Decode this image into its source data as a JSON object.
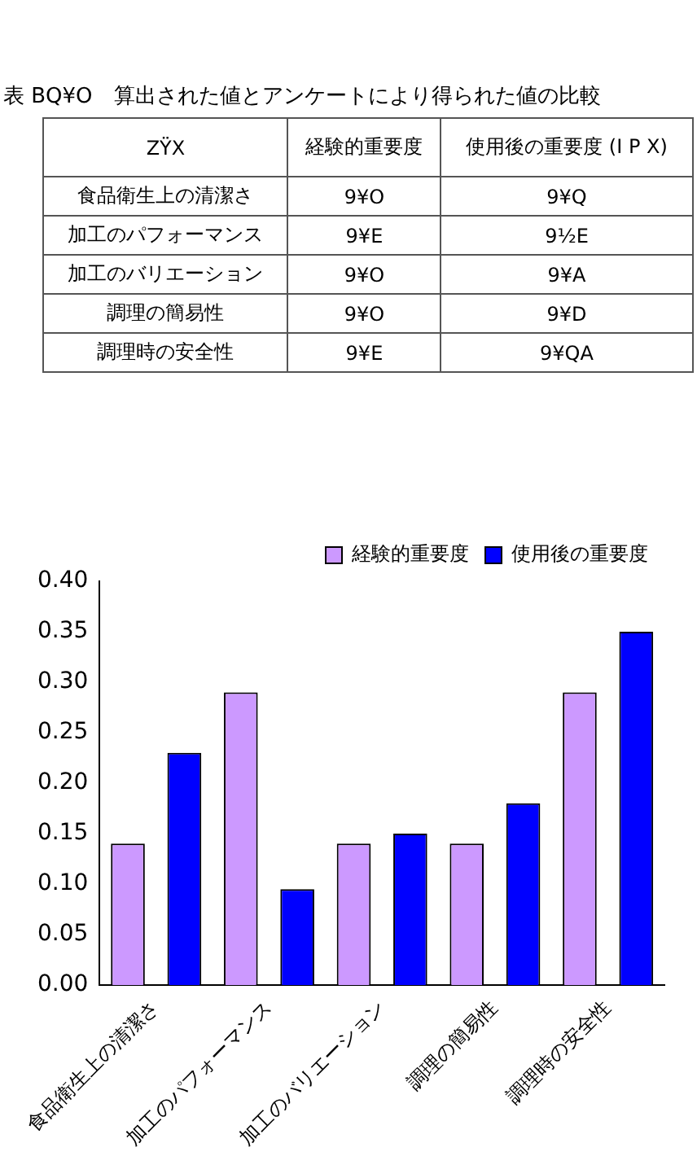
{
  "chart_data": [
    {
      "type": "other",
      "title": "表 BQ¥O　算出された値とアンケートにより得られた値の比較",
      "annotations": [
        "ZŸX",
        "経験的重要度",
        "使用後の重要度 (I P X)",
        "食品衛生上の清潔さ",
        "9¥O",
        "9¥Q",
        "加工のパフォーマンス",
        "9¥E",
        "9½E",
        "加工のバリエーション",
        "9¥O",
        "9¥A",
        "調理の簡易性",
        "9¥O",
        "9¥D",
        "調理時の安全性",
        "9¥E",
        "9¥QA"
      ]
    },
    {
      "type": "bar",
      "categories": [
        "食品衛生上の清潔さ",
        "加工のパフォーマンス",
        "加工のバリエーション",
        "調理の簡易性",
        "調理時の安全性"
      ],
      "series": [
        {
          "name": "経験的重要度",
          "color": "#cc99ff",
          "values": [
            0.14,
            0.29,
            0.14,
            0.14,
            0.29
          ]
        },
        {
          "name": "使用後の重要度",
          "color": "#0000ff",
          "values": [
            0.23,
            0.095,
            0.15,
            0.18,
            0.35
          ]
        }
      ],
      "ylim": [
        0,
        0.4
      ],
      "yticks": [
        {
          "value": 0,
          "label": "0.00"
        },
        {
          "value": 0.05,
          "label": "0.05"
        },
        {
          "value": 0.1,
          "label": "0.10"
        },
        {
          "value": 0.15,
          "label": "0.15"
        },
        {
          "value": 0.2,
          "label": "0.20"
        },
        {
          "value": 0.25,
          "label": "0.25"
        },
        {
          "value": 0.3,
          "label": "0.30"
        },
        {
          "value": 0.35,
          "label": "0.35"
        },
        {
          "value": 0.4,
          "label": "0.40"
        }
      ],
      "legend": "top right"
    }
  ]
}
